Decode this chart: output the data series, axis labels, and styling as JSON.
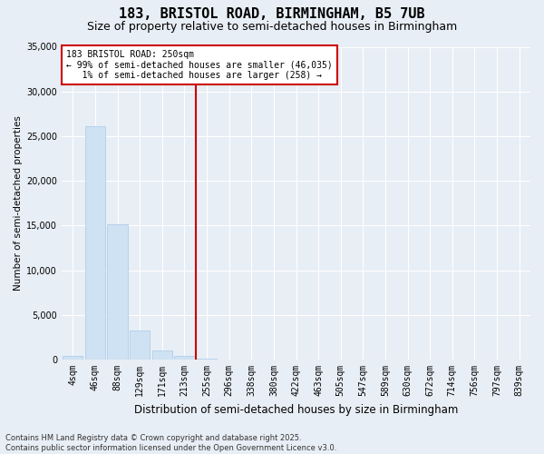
{
  "title1": "183, BRISTOL ROAD, BIRMINGHAM, B5 7UB",
  "title2": "Size of property relative to semi-detached houses in Birmingham",
  "xlabel": "Distribution of semi-detached houses by size in Birmingham",
  "ylabel": "Number of semi-detached properties",
  "categories": [
    "4sqm",
    "46sqm",
    "88sqm",
    "129sqm",
    "171sqm",
    "213sqm",
    "255sqm",
    "296sqm",
    "338sqm",
    "380sqm",
    "422sqm",
    "463sqm",
    "505sqm",
    "547sqm",
    "589sqm",
    "630sqm",
    "672sqm",
    "714sqm",
    "756sqm",
    "797sqm",
    "839sqm"
  ],
  "values": [
    400,
    26100,
    15100,
    3300,
    1050,
    450,
    100,
    30,
    10,
    5,
    2,
    1,
    0,
    0,
    0,
    0,
    0,
    0,
    0,
    0,
    0
  ],
  "bar_color": "#cfe2f3",
  "bar_edge_color": "#a8c8e8",
  "vline_index": 6,
  "vline_color": "#cc0000",
  "annotation_text": "183 BRISTOL ROAD: 250sqm\n← 99% of semi-detached houses are smaller (46,035)\n   1% of semi-detached houses are larger (258) →",
  "annotation_box_color": "#ffffff",
  "annotation_box_edge": "#cc0000",
  "ylim": [
    0,
    35000
  ],
  "yticks": [
    0,
    5000,
    10000,
    15000,
    20000,
    25000,
    30000,
    35000
  ],
  "bg_color": "#e8eef5",
  "plot_bg_color": "#e8eef5",
  "grid_color": "#ffffff",
  "footer": "Contains HM Land Registry data © Crown copyright and database right 2025.\nContains public sector information licensed under the Open Government Licence v3.0.",
  "title1_fontsize": 11,
  "title2_fontsize": 9,
  "xlabel_fontsize": 8.5,
  "ylabel_fontsize": 7.5,
  "tick_fontsize": 7,
  "annotation_fontsize": 7,
  "footer_fontsize": 6
}
